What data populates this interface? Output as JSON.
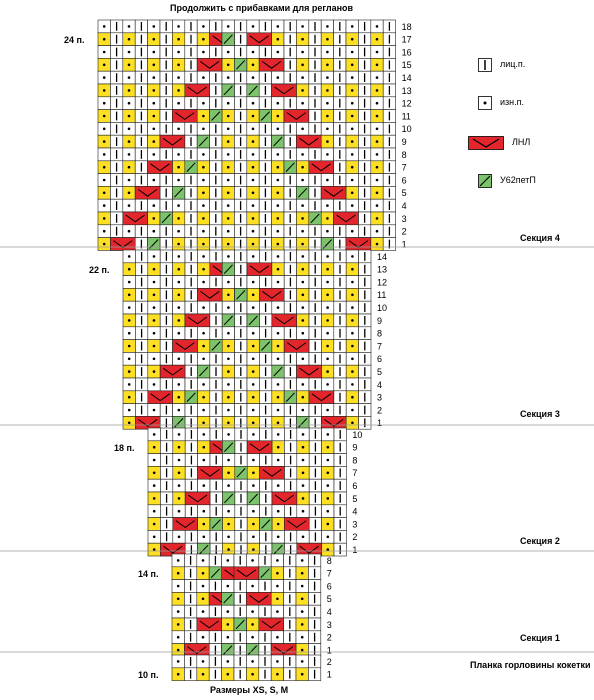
{
  "title": "Продолжить с прибавками для регланов",
  "footer": "Размеры XS, S, M",
  "colors": {
    "yellow": "#fde023",
    "white": "#ffffff",
    "red": "#e3262b",
    "green": "#7dc36b",
    "grid": "#222222"
  },
  "legend": [
    {
      "symbol": "knit",
      "label": "лиц.п."
    },
    {
      "symbol": "purl",
      "label": "изн.п."
    },
    {
      "symbol": "lnl",
      "label": "ЛНЛ"
    },
    {
      "symbol": "k2tog",
      "label": "У62петП"
    }
  ],
  "stitch_counts": [
    "24 п.",
    "22 п.",
    "18 п.",
    "14 п.",
    "10 п."
  ],
  "sections": [
    {
      "label": "Секция 4",
      "rows": [
        "18",
        "17",
        "16",
        "15",
        "14",
        "13",
        "12",
        "11",
        "10",
        "9",
        "8",
        "7",
        "6",
        "5",
        "4",
        "3",
        "2",
        "1"
      ]
    },
    {
      "label": "Секция 3",
      "rows": [
        "14",
        "13",
        "12",
        "11",
        "10",
        "9",
        "8",
        "7",
        "6",
        "5",
        "4",
        "3",
        "2",
        "1"
      ]
    },
    {
      "label": "Секция 2",
      "rows": [
        "10",
        "9",
        "8",
        "7",
        "6",
        "5",
        "4",
        "3",
        "2",
        "1"
      ]
    },
    {
      "label": "Секция 1",
      "rows": [
        "8",
        "7",
        "6",
        "5",
        "4",
        "3",
        "2",
        "1"
      ]
    },
    {
      "label": "Планка горловины кокетки",
      "rows": [
        "2",
        "1"
      ]
    }
  ]
}
